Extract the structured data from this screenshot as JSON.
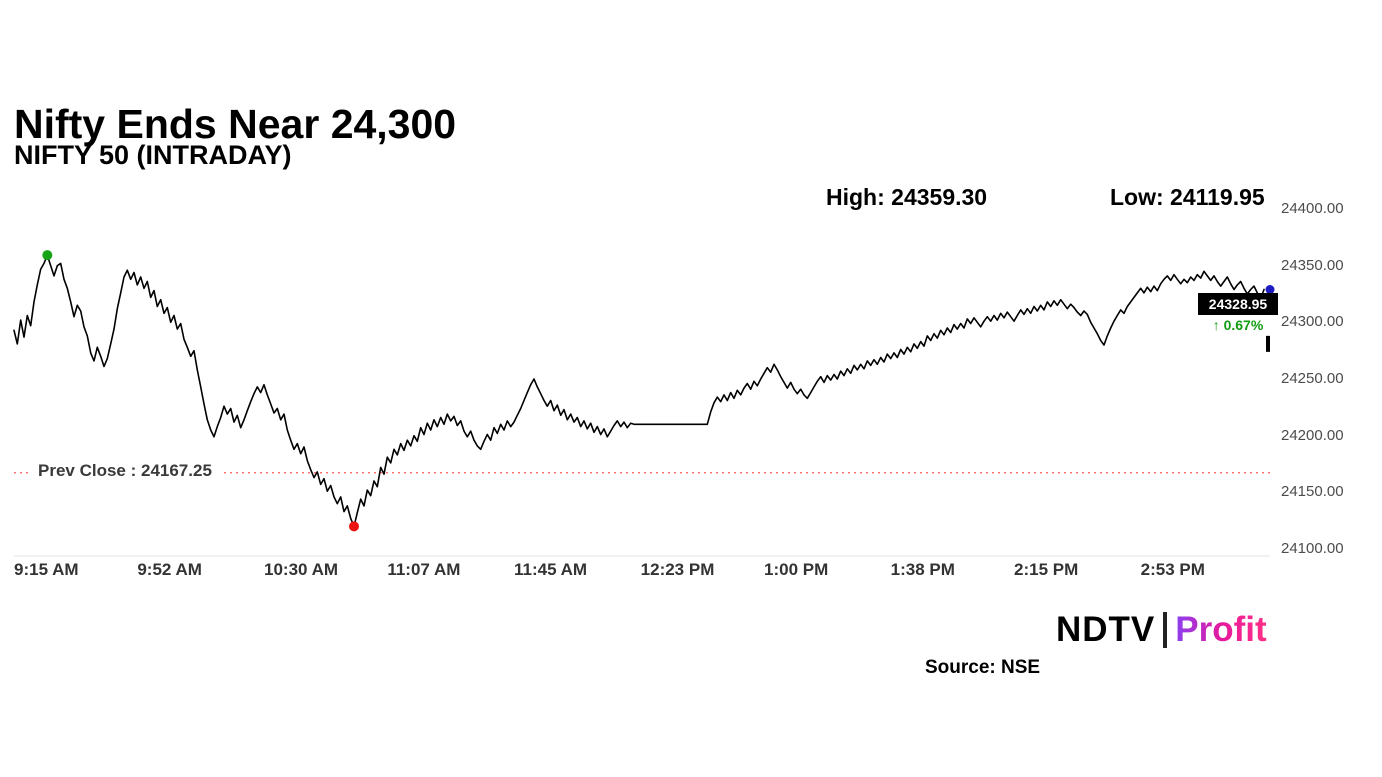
{
  "title": "Nifty Ends Near 24,300",
  "subtitle": "NIFTY 50 (INTRADAY)",
  "stats": {
    "high": "High: 24359.30",
    "low": "Low: 24119.95"
  },
  "prev_close_label": "Prev Close : 24167.25",
  "last_badge": {
    "price": "24328.95",
    "change": "↑ 0.67%"
  },
  "source": "Source: NSE",
  "logo": {
    "ndtv": "NDTV",
    "profit": "Profit"
  },
  "colors": {
    "line": "#000000",
    "prev_close_line": "#ff5a5a",
    "high_dot": "#17a317",
    "low_dot": "#ee1111",
    "last_dot": "#1c1cc0",
    "change_text": "#119c11",
    "axis_label": "#4c4c4c"
  },
  "chart_data": {
    "type": "line",
    "title": "Nifty Ends Near 24,300",
    "series_name": "NIFTY 50 (INTRADAY)",
    "ylim": [
      24100,
      24400
    ],
    "xlim_minutes": [
      0,
      375
    ],
    "grid": false,
    "y_ticks": [
      {
        "value": 24400,
        "label": "24400.00"
      },
      {
        "value": 24350,
        "label": "24350.00"
      },
      {
        "value": 24300,
        "label": "24300.00"
      },
      {
        "value": 24250,
        "label": "24250.00"
      },
      {
        "value": 24200,
        "label": "24200.00"
      },
      {
        "value": 24150,
        "label": "24150.00"
      },
      {
        "value": 24100,
        "label": "24100.00"
      }
    ],
    "x_ticks": [
      {
        "minute": 0,
        "label": "9:15 AM"
      },
      {
        "minute": 37,
        "label": "9:52 AM"
      },
      {
        "minute": 75,
        "label": "10:30 AM"
      },
      {
        "minute": 112,
        "label": "11:07 AM"
      },
      {
        "minute": 150,
        "label": "11:45 AM"
      },
      {
        "minute": 188,
        "label": "12:23 PM"
      },
      {
        "minute": 225,
        "label": "1:00 PM"
      },
      {
        "minute": 263,
        "label": "1:38 PM"
      },
      {
        "minute": 300,
        "label": "2:15 PM"
      },
      {
        "minute": 338,
        "label": "2:53 PM"
      }
    ],
    "prev_close": 24167.25,
    "high": 24359.3,
    "low": 24119.95,
    "close": 24328.95,
    "change_pct": "0.67",
    "end_tick_price": 24281,
    "points": [
      [
        0,
        24293
      ],
      [
        1,
        24281
      ],
      [
        2,
        24302
      ],
      [
        3,
        24287
      ],
      [
        4,
        24306
      ],
      [
        5,
        24297
      ],
      [
        6,
        24318
      ],
      [
        7,
        24333
      ],
      [
        8,
        24347
      ],
      [
        9,
        24352
      ],
      [
        10,
        24359.3
      ],
      [
        11,
        24350
      ],
      [
        12,
        24341
      ],
      [
        13,
        24350
      ],
      [
        14,
        24352
      ],
      [
        15,
        24338
      ],
      [
        16,
        24330
      ],
      [
        17,
        24318
      ],
      [
        18,
        24305
      ],
      [
        19,
        24315
      ],
      [
        20,
        24310
      ],
      [
        21,
        24296
      ],
      [
        22,
        24288
      ],
      [
        23,
        24273
      ],
      [
        24,
        24266
      ],
      [
        25,
        24278
      ],
      [
        26,
        24270
      ],
      [
        27,
        24261
      ],
      [
        28,
        24268
      ],
      [
        29,
        24281
      ],
      [
        30,
        24294
      ],
      [
        31,
        24312
      ],
      [
        32,
        24326
      ],
      [
        33,
        24340
      ],
      [
        34,
        24346
      ],
      [
        35,
        24338
      ],
      [
        36,
        24344
      ],
      [
        37,
        24333
      ],
      [
        38,
        24340
      ],
      [
        39,
        24330
      ],
      [
        40,
        24336
      ],
      [
        41,
        24322
      ],
      [
        42,
        24328
      ],
      [
        43,
        24314
      ],
      [
        44,
        24320
      ],
      [
        45,
        24308
      ],
      [
        46,
        24313
      ],
      [
        47,
        24300
      ],
      [
        48,
        24306
      ],
      [
        49,
        24294
      ],
      [
        50,
        24299
      ],
      [
        51,
        24285
      ],
      [
        52,
        24278
      ],
      [
        53,
        24270
      ],
      [
        54,
        24275
      ],
      [
        55,
        24258
      ],
      [
        56,
        24243
      ],
      [
        57,
        24228
      ],
      [
        58,
        24214
      ],
      [
        59,
        24205
      ],
      [
        60,
        24199
      ],
      [
        61,
        24208
      ],
      [
        62,
        24216
      ],
      [
        63,
        24226
      ],
      [
        64,
        24219
      ],
      [
        65,
        24224
      ],
      [
        66,
        24212
      ],
      [
        67,
        24218
      ],
      [
        68,
        24207
      ],
      [
        69,
        24214
      ],
      [
        70,
        24222
      ],
      [
        71,
        24230
      ],
      [
        72,
        24237
      ],
      [
        73,
        24243
      ],
      [
        74,
        24238
      ],
      [
        75,
        24245
      ],
      [
        76,
        24236
      ],
      [
        77,
        24228
      ],
      [
        78,
        24220
      ],
      [
        79,
        24224
      ],
      [
        80,
        24214
      ],
      [
        81,
        24219
      ],
      [
        82,
        24205
      ],
      [
        83,
        24196
      ],
      [
        84,
        24188
      ],
      [
        85,
        24193
      ],
      [
        86,
        24184
      ],
      [
        87,
        24190
      ],
      [
        88,
        24178
      ],
      [
        89,
        24170
      ],
      [
        90,
        24163
      ],
      [
        91,
        24168
      ],
      [
        92,
        24157
      ],
      [
        93,
        24162
      ],
      [
        94,
        24151
      ],
      [
        95,
        24156
      ],
      [
        96,
        24146
      ],
      [
        97,
        24140
      ],
      [
        98,
        24146
      ],
      [
        99,
        24133
      ],
      [
        100,
        24138
      ],
      [
        101,
        24127
      ],
      [
        102,
        24119.95
      ],
      [
        103,
        24132
      ],
      [
        104,
        24144
      ],
      [
        105,
        24138
      ],
      [
        106,
        24152
      ],
      [
        107,
        24147
      ],
      [
        108,
        24160
      ],
      [
        109,
        24155
      ],
      [
        110,
        24172
      ],
      [
        111,
        24166
      ],
      [
        112,
        24181
      ],
      [
        113,
        24176
      ],
      [
        114,
        24188
      ],
      [
        115,
        24183
      ],
      [
        116,
        24193
      ],
      [
        117,
        24187
      ],
      [
        118,
        24196
      ],
      [
        119,
        24191
      ],
      [
        120,
        24200
      ],
      [
        121,
        24195
      ],
      [
        122,
        24207
      ],
      [
        123,
        24201
      ],
      [
        124,
        24211
      ],
      [
        125,
        24205
      ],
      [
        126,
        24214
      ],
      [
        127,
        24208
      ],
      [
        128,
        24216
      ],
      [
        129,
        24210
      ],
      [
        130,
        24219
      ],
      [
        131,
        24213
      ],
      [
        132,
        24217
      ],
      [
        133,
        24209
      ],
      [
        134,
        24213
      ],
      [
        135,
        24204
      ],
      [
        136,
        24199
      ],
      [
        137,
        24204
      ],
      [
        138,
        24196
      ],
      [
        139,
        24191
      ],
      [
        140,
        24188
      ],
      [
        141,
        24195
      ],
      [
        142,
        24201
      ],
      [
        143,
        24196
      ],
      [
        144,
        24207
      ],
      [
        145,
        24202
      ],
      [
        146,
        24210
      ],
      [
        147,
        24205
      ],
      [
        148,
        24213
      ],
      [
        149,
        24208
      ],
      [
        150,
        24212
      ],
      [
        151,
        24218
      ],
      [
        152,
        24224
      ],
      [
        153,
        24231
      ],
      [
        154,
        24238
      ],
      [
        155,
        24245
      ],
      [
        156,
        24250
      ],
      [
        157,
        24243
      ],
      [
        158,
        24237
      ],
      [
        159,
        24231
      ],
      [
        160,
        24226
      ],
      [
        161,
        24231
      ],
      [
        162,
        24222
      ],
      [
        163,
        24227
      ],
      [
        164,
        24218
      ],
      [
        165,
        24223
      ],
      [
        166,
        24214
      ],
      [
        167,
        24219
      ],
      [
        168,
        24212
      ],
      [
        169,
        24216
      ],
      [
        170,
        24208
      ],
      [
        171,
        24213
      ],
      [
        172,
        24206
      ],
      [
        173,
        24211
      ],
      [
        174,
        24203
      ],
      [
        175,
        24208
      ],
      [
        176,
        24201
      ],
      [
        177,
        24206
      ],
      [
        178,
        24199
      ],
      [
        179,
        24204
      ],
      [
        180,
        24209
      ],
      [
        181,
        24213
      ],
      [
        182,
        24208
      ],
      [
        183,
        24212
      ],
      [
        184,
        24207
      ],
      [
        185,
        24211
      ],
      [
        186,
        24210
      ],
      [
        208,
        24210
      ],
      [
        209,
        24221
      ],
      [
        210,
        24229
      ],
      [
        211,
        24234
      ],
      [
        212,
        24230
      ],
      [
        213,
        24236
      ],
      [
        214,
        24231
      ],
      [
        215,
        24238
      ],
      [
        216,
        24233
      ],
      [
        217,
        24240
      ],
      [
        218,
        24236
      ],
      [
        219,
        24242
      ],
      [
        220,
        24246
      ],
      [
        221,
        24241
      ],
      [
        222,
        24248
      ],
      [
        223,
        24244
      ],
      [
        224,
        24250
      ],
      [
        225,
        24255
      ],
      [
        226,
        24260
      ],
      [
        227,
        24256
      ],
      [
        228,
        24263
      ],
      [
        229,
        24258
      ],
      [
        230,
        24252
      ],
      [
        231,
        24247
      ],
      [
        232,
        24242
      ],
      [
        233,
        24247
      ],
      [
        234,
        24241
      ],
      [
        235,
        24237
      ],
      [
        236,
        24241
      ],
      [
        237,
        24236
      ],
      [
        238,
        24233
      ],
      [
        239,
        24238
      ],
      [
        240,
        24243
      ],
      [
        241,
        24248
      ],
      [
        242,
        24252
      ],
      [
        243,
        24247
      ],
      [
        244,
        24253
      ],
      [
        245,
        24249
      ],
      [
        246,
        24254
      ],
      [
        247,
        24250
      ],
      [
        248,
        24257
      ],
      [
        249,
        24253
      ],
      [
        250,
        24259
      ],
      [
        251,
        24255
      ],
      [
        252,
        24262
      ],
      [
        253,
        24258
      ],
      [
        254,
        24263
      ],
      [
        255,
        24259
      ],
      [
        256,
        24266
      ],
      [
        257,
        24262
      ],
      [
        258,
        24267
      ],
      [
        259,
        24263
      ],
      [
        260,
        24269
      ],
      [
        261,
        24265
      ],
      [
        262,
        24272
      ],
      [
        263,
        24268
      ],
      [
        264,
        24273
      ],
      [
        265,
        24269
      ],
      [
        266,
        24276
      ],
      [
        267,
        24272
      ],
      [
        268,
        24278
      ],
      [
        269,
        24274
      ],
      [
        270,
        24281
      ],
      [
        271,
        24277
      ],
      [
        272,
        24283
      ],
      [
        273,
        24279
      ],
      [
        274,
        24288
      ],
      [
        275,
        24284
      ],
      [
        276,
        24290
      ],
      [
        277,
        24286
      ],
      [
        278,
        24293
      ],
      [
        279,
        24289
      ],
      [
        280,
        24295
      ],
      [
        281,
        24291
      ],
      [
        282,
        24298
      ],
      [
        283,
        24294
      ],
      [
        284,
        24299
      ],
      [
        285,
        24295
      ],
      [
        286,
        24303
      ],
      [
        287,
        24299
      ],
      [
        288,
        24304
      ],
      [
        289,
        24300
      ],
      [
        290,
        24296
      ],
      [
        291,
        24301
      ],
      [
        292,
        24305
      ],
      [
        293,
        24301
      ],
      [
        294,
        24306
      ],
      [
        295,
        24302
      ],
      [
        296,
        24308
      ],
      [
        297,
        24304
      ],
      [
        298,
        24309
      ],
      [
        299,
        24305
      ],
      [
        300,
        24301
      ],
      [
        301,
        24306
      ],
      [
        302,
        24311
      ],
      [
        303,
        24307
      ],
      [
        304,
        24312
      ],
      [
        305,
        24308
      ],
      [
        306,
        24314
      ],
      [
        307,
        24310
      ],
      [
        308,
        24315
      ],
      [
        309,
        24311
      ],
      [
        310,
        24318
      ],
      [
        311,
        24314
      ],
      [
        312,
        24319
      ],
      [
        313,
        24315
      ],
      [
        314,
        24320
      ],
      [
        315,
        24316
      ],
      [
        316,
        24312
      ],
      [
        317,
        24316
      ],
      [
        318,
        24313
      ],
      [
        319,
        24309
      ],
      [
        320,
        24306
      ],
      [
        321,
        24310
      ],
      [
        322,
        24307
      ],
      [
        323,
        24300
      ],
      [
        324,
        24295
      ],
      [
        325,
        24290
      ],
      [
        326,
        24284
      ],
      [
        327,
        24280
      ],
      [
        328,
        24288
      ],
      [
        329,
        24295
      ],
      [
        330,
        24301
      ],
      [
        331,
        24306
      ],
      [
        332,
        24311
      ],
      [
        333,
        24308
      ],
      [
        334,
        24314
      ],
      [
        335,
        24318
      ],
      [
        336,
        24322
      ],
      [
        337,
        24326
      ],
      [
        338,
        24330
      ],
      [
        339,
        24326
      ],
      [
        340,
        24331
      ],
      [
        341,
        24327
      ],
      [
        342,
        24332
      ],
      [
        343,
        24328
      ],
      [
        344,
        24334
      ],
      [
        345,
        24338
      ],
      [
        346,
        24341
      ],
      [
        347,
        24337
      ],
      [
        348,
        24342
      ],
      [
        349,
        24338
      ],
      [
        350,
        24334
      ],
      [
        351,
        24338
      ],
      [
        352,
        24335
      ],
      [
        353,
        24340
      ],
      [
        354,
        24337
      ],
      [
        355,
        24342
      ],
      [
        356,
        24339
      ],
      [
        357,
        24345
      ],
      [
        358,
        24341
      ],
      [
        359,
        24337
      ],
      [
        360,
        24341
      ],
      [
        361,
        24336
      ],
      [
        362,
        24332
      ],
      [
        363,
        24336
      ],
      [
        364,
        24340
      ],
      [
        365,
        24334
      ],
      [
        366,
        24329
      ],
      [
        367,
        24333
      ],
      [
        368,
        24336
      ],
      [
        369,
        24330
      ],
      [
        370,
        24325
      ],
      [
        371,
        24329
      ],
      [
        372,
        24332
      ],
      [
        373,
        24326
      ],
      [
        374,
        24321
      ],
      [
        375,
        24328.95
      ]
    ]
  }
}
